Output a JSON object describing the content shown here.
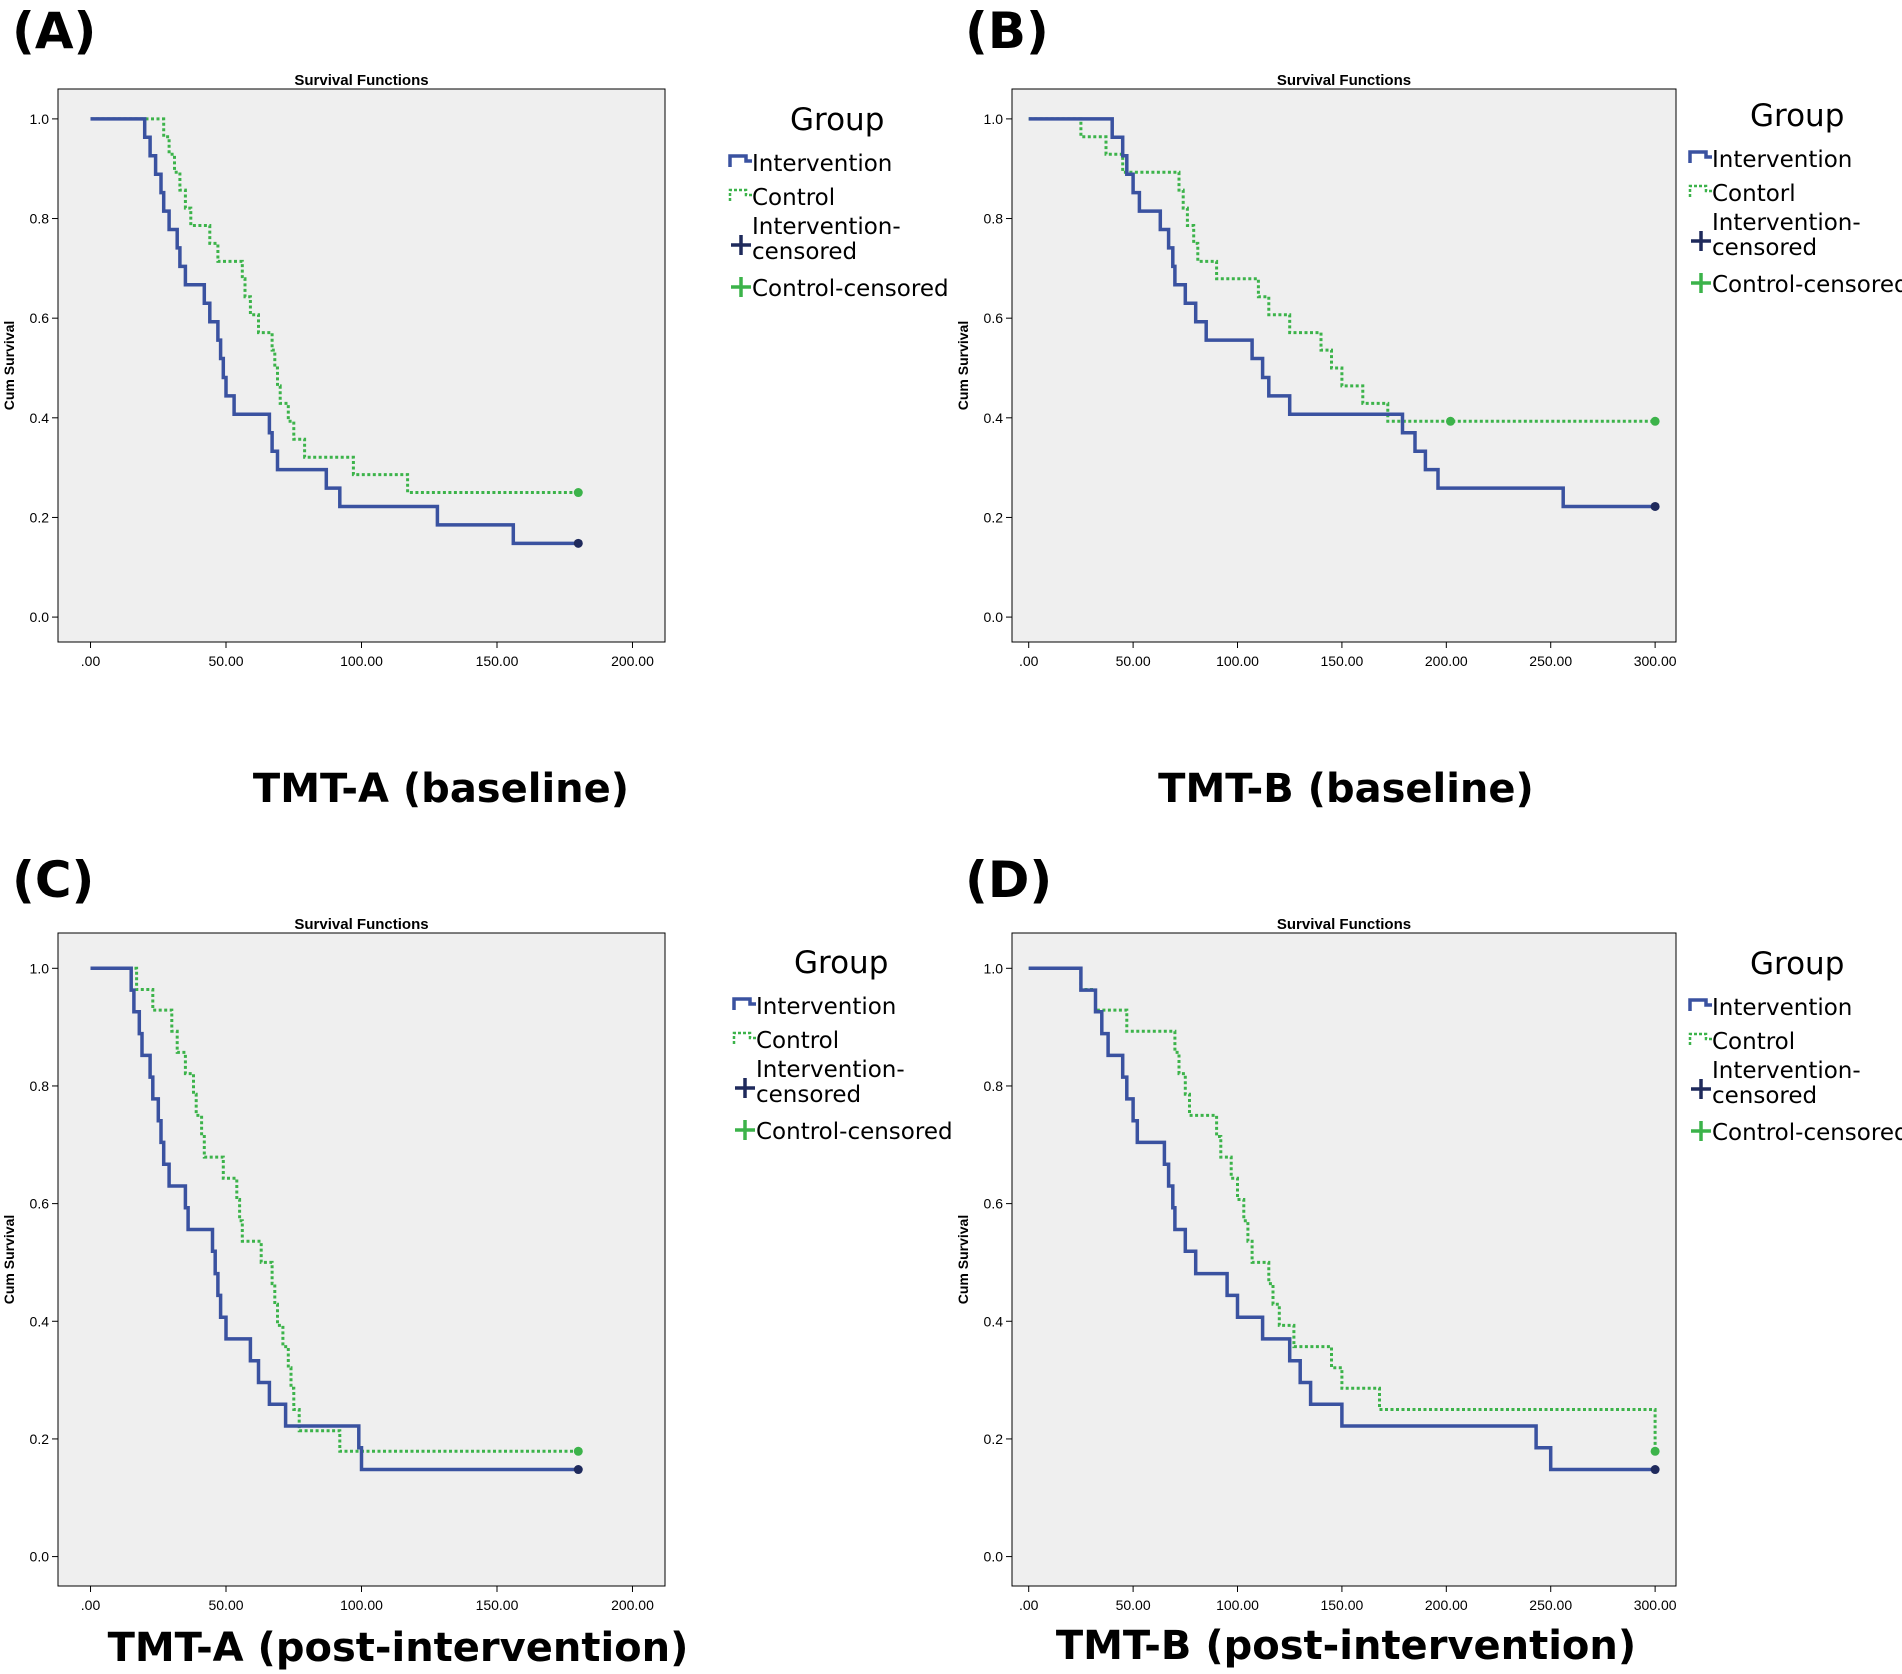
{
  "colors": {
    "intervention": "#3a52a0",
    "control": "#3cb34a",
    "intervention_censored": "#1f2a5c",
    "control_censored": "#3cb34a",
    "plot_background": "#efefef"
  },
  "legend_icons": [
    "step-line-icon",
    "dashed-step-line-icon",
    "plus-marker-icon",
    "plus-marker-icon"
  ],
  "chart_data": [
    {
      "panel": "(A)",
      "type": "line",
      "title": "Survival Functions",
      "xlabel": "TMT-A (baseline)",
      "ylabel": "Cum Survival",
      "xlim": [
        -12,
        212
      ],
      "ylim": [
        -0.05,
        1.06
      ],
      "xticks": [
        0,
        50,
        100,
        150,
        200
      ],
      "xtick_labels": [
        ".00",
        "50.00",
        "100.00",
        "150.00",
        "200.00"
      ],
      "yticks": [
        0,
        0.2,
        0.4,
        0.6,
        0.8,
        1.0
      ],
      "ytick_labels": [
        "0.0",
        "0.2",
        "0.4",
        "0.6",
        "0.8",
        "1.0"
      ],
      "legend": {
        "title": "Group",
        "items": [
          "Intervention",
          "Control",
          "Intervention-\ncensored",
          "Control-censored"
        ],
        "placement": "right"
      },
      "series": [
        {
          "name": "Intervention",
          "style": "solid",
          "steps": [
            [
              0,
              1.0
            ],
            [
              20,
              0.963
            ],
            [
              22,
              0.926
            ],
            [
              24,
              0.889
            ],
            [
              26,
              0.852
            ],
            [
              27,
              0.815
            ],
            [
              29,
              0.778
            ],
            [
              32,
              0.741
            ],
            [
              33,
              0.704
            ],
            [
              35,
              0.667
            ],
            [
              42,
              0.63
            ],
            [
              44,
              0.593
            ],
            [
              47,
              0.556
            ],
            [
              48,
              0.519
            ],
            [
              49,
              0.481
            ],
            [
              50,
              0.444
            ],
            [
              53,
              0.407
            ],
            [
              66,
              0.37
            ],
            [
              67,
              0.333
            ],
            [
              69,
              0.296
            ],
            [
              87,
              0.259
            ],
            [
              92,
              0.222
            ],
            [
              128,
              0.185
            ],
            [
              156,
              0.148
            ]
          ],
          "end_x": 180,
          "censored": [
            [
              180,
              0.148
            ]
          ]
        },
        {
          "name": "Control",
          "style": "dotted",
          "steps": [
            [
              0,
              1.0
            ],
            [
              27,
              0.964
            ],
            [
              29,
              0.929
            ],
            [
              31,
              0.893
            ],
            [
              33,
              0.857
            ],
            [
              35,
              0.821
            ],
            [
              37,
              0.786
            ],
            [
              44,
              0.75
            ],
            [
              47,
              0.714
            ],
            [
              56,
              0.679
            ],
            [
              57,
              0.643
            ],
            [
              59,
              0.607
            ],
            [
              62,
              0.571
            ],
            [
              67,
              0.536
            ],
            [
              68,
              0.5
            ],
            [
              69,
              0.464
            ],
            [
              70,
              0.429
            ],
            [
              73,
              0.393
            ],
            [
              75,
              0.357
            ],
            [
              79,
              0.321
            ],
            [
              97,
              0.286
            ],
            [
              117,
              0.25
            ]
          ],
          "end_x": 180,
          "censored": [
            [
              180,
              0.25
            ]
          ]
        }
      ]
    },
    {
      "panel": "(B)",
      "type": "line",
      "title": "Survival Functions",
      "xlabel": "TMT-B (baseline)",
      "ylabel": "Cum Survival",
      "xlim": [
        -8,
        310
      ],
      "ylim": [
        -0.05,
        1.06
      ],
      "xticks": [
        0,
        50,
        100,
        150,
        200,
        250,
        300
      ],
      "xtick_labels": [
        ".00",
        "50.00",
        "100.00",
        "150.00",
        "200.00",
        "250.00",
        "300.00"
      ],
      "yticks": [
        0,
        0.2,
        0.4,
        0.6,
        0.8,
        1.0
      ],
      "ytick_labels": [
        "0.0",
        "0.2",
        "0.4",
        "0.6",
        "0.8",
        "1.0"
      ],
      "legend": {
        "title": "Group",
        "items": [
          "Intervention",
          "Contorl",
          "Intervention-\ncensored",
          "Control-censored"
        ],
        "placement": "right"
      },
      "series": [
        {
          "name": "Intervention",
          "style": "solid",
          "steps": [
            [
              0,
              1.0
            ],
            [
              40,
              0.963
            ],
            [
              45,
              0.926
            ],
            [
              47,
              0.889
            ],
            [
              50,
              0.852
            ],
            [
              53,
              0.815
            ],
            [
              63,
              0.778
            ],
            [
              67,
              0.741
            ],
            [
              69,
              0.704
            ],
            [
              70,
              0.667
            ],
            [
              75,
              0.63
            ],
            [
              80,
              0.593
            ],
            [
              85,
              0.556
            ],
            [
              107,
              0.519
            ],
            [
              112,
              0.481
            ],
            [
              115,
              0.444
            ],
            [
              125,
              0.407
            ],
            [
              179,
              0.37
            ],
            [
              185,
              0.333
            ],
            [
              190,
              0.296
            ],
            [
              196,
              0.259
            ],
            [
              256,
              0.222
            ]
          ],
          "end_x": 300,
          "censored": [
            [
              300,
              0.222
            ]
          ]
        },
        {
          "name": "Control",
          "style": "dotted",
          "steps": [
            [
              0,
              1.0
            ],
            [
              25,
              0.964
            ],
            [
              37,
              0.929
            ],
            [
              45,
              0.893
            ],
            [
              72,
              0.857
            ],
            [
              74,
              0.821
            ],
            [
              76,
              0.786
            ],
            [
              79,
              0.75
            ],
            [
              81,
              0.714
            ],
            [
              90,
              0.679
            ],
            [
              110,
              0.643
            ],
            [
              115,
              0.607
            ],
            [
              125,
              0.571
            ],
            [
              140,
              0.536
            ],
            [
              145,
              0.5
            ],
            [
              150,
              0.464
            ],
            [
              160,
              0.429
            ],
            [
              172,
              0.393
            ]
          ],
          "end_x": 300,
          "censored": [
            [
              202,
              0.393
            ],
            [
              300,
              0.393
            ]
          ]
        }
      ]
    },
    {
      "panel": "(C)",
      "type": "line",
      "title": "Survival Functions",
      "xlabel": "TMT-A (post-intervention)",
      "ylabel": "Cum Survival",
      "xlim": [
        -12,
        212
      ],
      "ylim": [
        -0.05,
        1.06
      ],
      "xticks": [
        0,
        50,
        100,
        150,
        200
      ],
      "xtick_labels": [
        ".00",
        "50.00",
        "100.00",
        "150.00",
        "200.00"
      ],
      "yticks": [
        0,
        0.2,
        0.4,
        0.6,
        0.8,
        1.0
      ],
      "ytick_labels": [
        "0.0",
        "0.2",
        "0.4",
        "0.6",
        "0.8",
        "1.0"
      ],
      "legend": {
        "title": "Group",
        "items": [
          "Intervention",
          "Control",
          "Intervention-\ncensored",
          "Control-censored"
        ],
        "placement": "right"
      },
      "series": [
        {
          "name": "Intervention",
          "style": "solid",
          "steps": [
            [
              0,
              1.0
            ],
            [
              15,
              0.963
            ],
            [
              16,
              0.926
            ],
            [
              18,
              0.889
            ],
            [
              19,
              0.852
            ],
            [
              22,
              0.815
            ],
            [
              23,
              0.778
            ],
            [
              25,
              0.741
            ],
            [
              26,
              0.704
            ],
            [
              27,
              0.667
            ],
            [
              29,
              0.63
            ],
            [
              35,
              0.593
            ],
            [
              36,
              0.556
            ],
            [
              45,
              0.519
            ],
            [
              46,
              0.481
            ],
            [
              47,
              0.444
            ],
            [
              48,
              0.407
            ],
            [
              50,
              0.37
            ],
            [
              59,
              0.333
            ],
            [
              62,
              0.296
            ],
            [
              66,
              0.259
            ],
            [
              72,
              0.222
            ],
            [
              99,
              0.185
            ],
            [
              100,
              0.148
            ]
          ],
          "end_x": 180,
          "censored": [
            [
              180,
              0.148
            ]
          ]
        },
        {
          "name": "Control",
          "style": "dotted",
          "steps": [
            [
              0,
              1.0
            ],
            [
              17,
              0.964
            ],
            [
              23,
              0.929
            ],
            [
              30,
              0.893
            ],
            [
              32,
              0.857
            ],
            [
              35,
              0.821
            ],
            [
              38,
              0.786
            ],
            [
              39,
              0.75
            ],
            [
              41,
              0.714
            ],
            [
              42,
              0.679
            ],
            [
              49,
              0.643
            ],
            [
              54,
              0.607
            ],
            [
              55,
              0.571
            ],
            [
              56,
              0.536
            ],
            [
              63,
              0.5
            ],
            [
              67,
              0.464
            ],
            [
              68,
              0.429
            ],
            [
              69,
              0.393
            ],
            [
              71,
              0.357
            ],
            [
              73,
              0.321
            ],
            [
              74,
              0.286
            ],
            [
              75,
              0.25
            ],
            [
              77,
              0.214
            ],
            [
              92,
              0.179
            ]
          ],
          "end_x": 180,
          "censored": [
            [
              180,
              0.179
            ]
          ]
        }
      ]
    },
    {
      "panel": "(D)",
      "type": "line",
      "title": "Survival Functions",
      "xlabel": "TMT-B (post-intervention)",
      "ylabel": "Cum Survival",
      "xlim": [
        -8,
        310
      ],
      "ylim": [
        -0.05,
        1.06
      ],
      "xticks": [
        0,
        50,
        100,
        150,
        200,
        250,
        300
      ],
      "xtick_labels": [
        ".00",
        "50.00",
        "100.00",
        "150.00",
        "200.00",
        "250.00",
        "300.00"
      ],
      "yticks": [
        0,
        0.2,
        0.4,
        0.6,
        0.8,
        1.0
      ],
      "ytick_labels": [
        "0.0",
        "0.2",
        "0.4",
        "0.6",
        "0.8",
        "1.0"
      ],
      "legend": {
        "title": "Group",
        "items": [
          "Intervention",
          "Control",
          "Intervention-\ncensored",
          "Control-censored"
        ],
        "placement": "right"
      },
      "series": [
        {
          "name": "Intervention",
          "style": "solid",
          "steps": [
            [
              0,
              1.0
            ],
            [
              25,
              0.963
            ],
            [
              32,
              0.926
            ],
            [
              35,
              0.889
            ],
            [
              38,
              0.852
            ],
            [
              45,
              0.815
            ],
            [
              47,
              0.778
            ],
            [
              50,
              0.741
            ],
            [
              52,
              0.704
            ],
            [
              65,
              0.667
            ],
            [
              67,
              0.63
            ],
            [
              69,
              0.593
            ],
            [
              70,
              0.556
            ],
            [
              75,
              0.519
            ],
            [
              80,
              0.481
            ],
            [
              95,
              0.444
            ],
            [
              100,
              0.407
            ],
            [
              112,
              0.37
            ],
            [
              125,
              0.333
            ],
            [
              130,
              0.296
            ],
            [
              135,
              0.259
            ],
            [
              150,
              0.222
            ],
            [
              243,
              0.185
            ],
            [
              250,
              0.148
            ]
          ],
          "end_x": 300,
          "censored": [
            [
              300,
              0.148
            ]
          ]
        },
        {
          "name": "Control",
          "style": "dotted",
          "steps": [
            [
              0,
              1.0
            ],
            [
              25,
              0.964
            ],
            [
              32,
              0.929
            ],
            [
              47,
              0.893
            ],
            [
              70,
              0.857
            ],
            [
              72,
              0.821
            ],
            [
              75,
              0.786
            ],
            [
              77,
              0.75
            ],
            [
              90,
              0.714
            ],
            [
              92,
              0.679
            ],
            [
              97,
              0.643
            ],
            [
              100,
              0.607
            ],
            [
              103,
              0.571
            ],
            [
              105,
              0.536
            ],
            [
              107,
              0.5
            ],
            [
              115,
              0.464
            ],
            [
              117,
              0.429
            ],
            [
              120,
              0.393
            ],
            [
              127,
              0.357
            ],
            [
              145,
              0.321
            ],
            [
              150,
              0.286
            ],
            [
              168,
              0.25
            ],
            [
              300,
              0.179
            ]
          ],
          "end_x": 300,
          "censored": [
            [
              300,
              0.179
            ]
          ]
        }
      ]
    }
  ]
}
